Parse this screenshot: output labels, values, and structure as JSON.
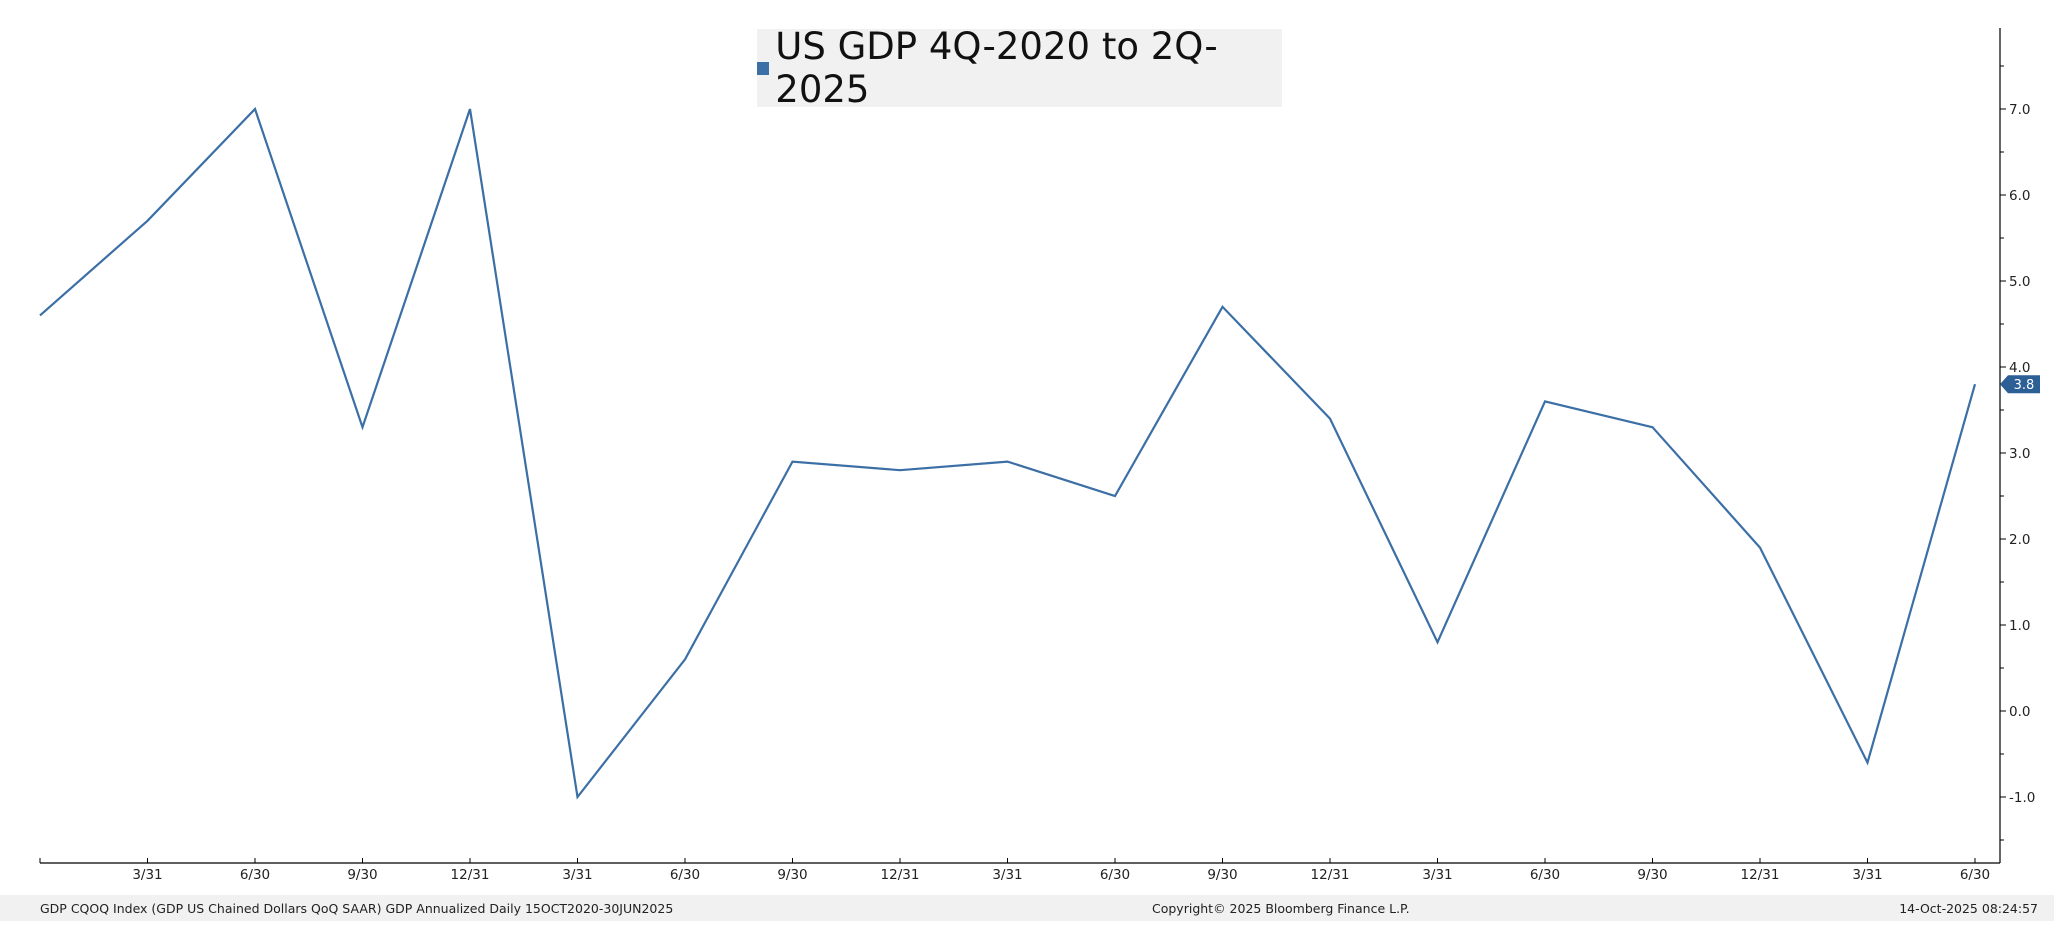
{
  "chart_data": {
    "type": "line",
    "series": [
      {
        "name": "US GDP 4Q-2020 to 2Q-2025",
        "color": "#3b6fa5",
        "values": [
          4.6,
          5.7,
          7.0,
          3.3,
          7.0,
          -1.0,
          0.6,
          2.9,
          2.8,
          2.9,
          2.5,
          4.7,
          3.4,
          0.8,
          3.6,
          3.3,
          1.9,
          -0.6,
          3.8
        ]
      }
    ],
    "x_tick_labels": [
      "",
      "3/31",
      "6/30",
      "9/30",
      "12/31",
      "3/31",
      "6/30",
      "9/30",
      "12/31",
      "3/31",
      "6/30",
      "9/30",
      "12/31",
      "3/31",
      "6/30",
      "9/30",
      "12/31",
      "3/31",
      "6/30"
    ],
    "y_ticks": [
      "7.0",
      "6.0",
      "5.0",
      "4.0",
      "3.0",
      "2.0",
      "1.0",
      "0.0",
      "-1.0"
    ],
    "y_tick_values": [
      7,
      6,
      5,
      4,
      3,
      2,
      1,
      0,
      -1
    ],
    "ylim": [
      -1.8,
      8.0
    ],
    "y_axis_side": "right",
    "last_value_label": "3.8",
    "last_value_color": "#2c5f95",
    "legend_placement": "top-center",
    "grid": false
  },
  "footer": {
    "source": "GDP CQOQ Index (GDP US Chained Dollars QoQ SAAR) GDP Annualized Daily 15OCT2020-30JUN2025",
    "copyright": "Copyright© 2025 Bloomberg Finance L.P.",
    "timestamp": "14-Oct-2025 08:24:57"
  }
}
